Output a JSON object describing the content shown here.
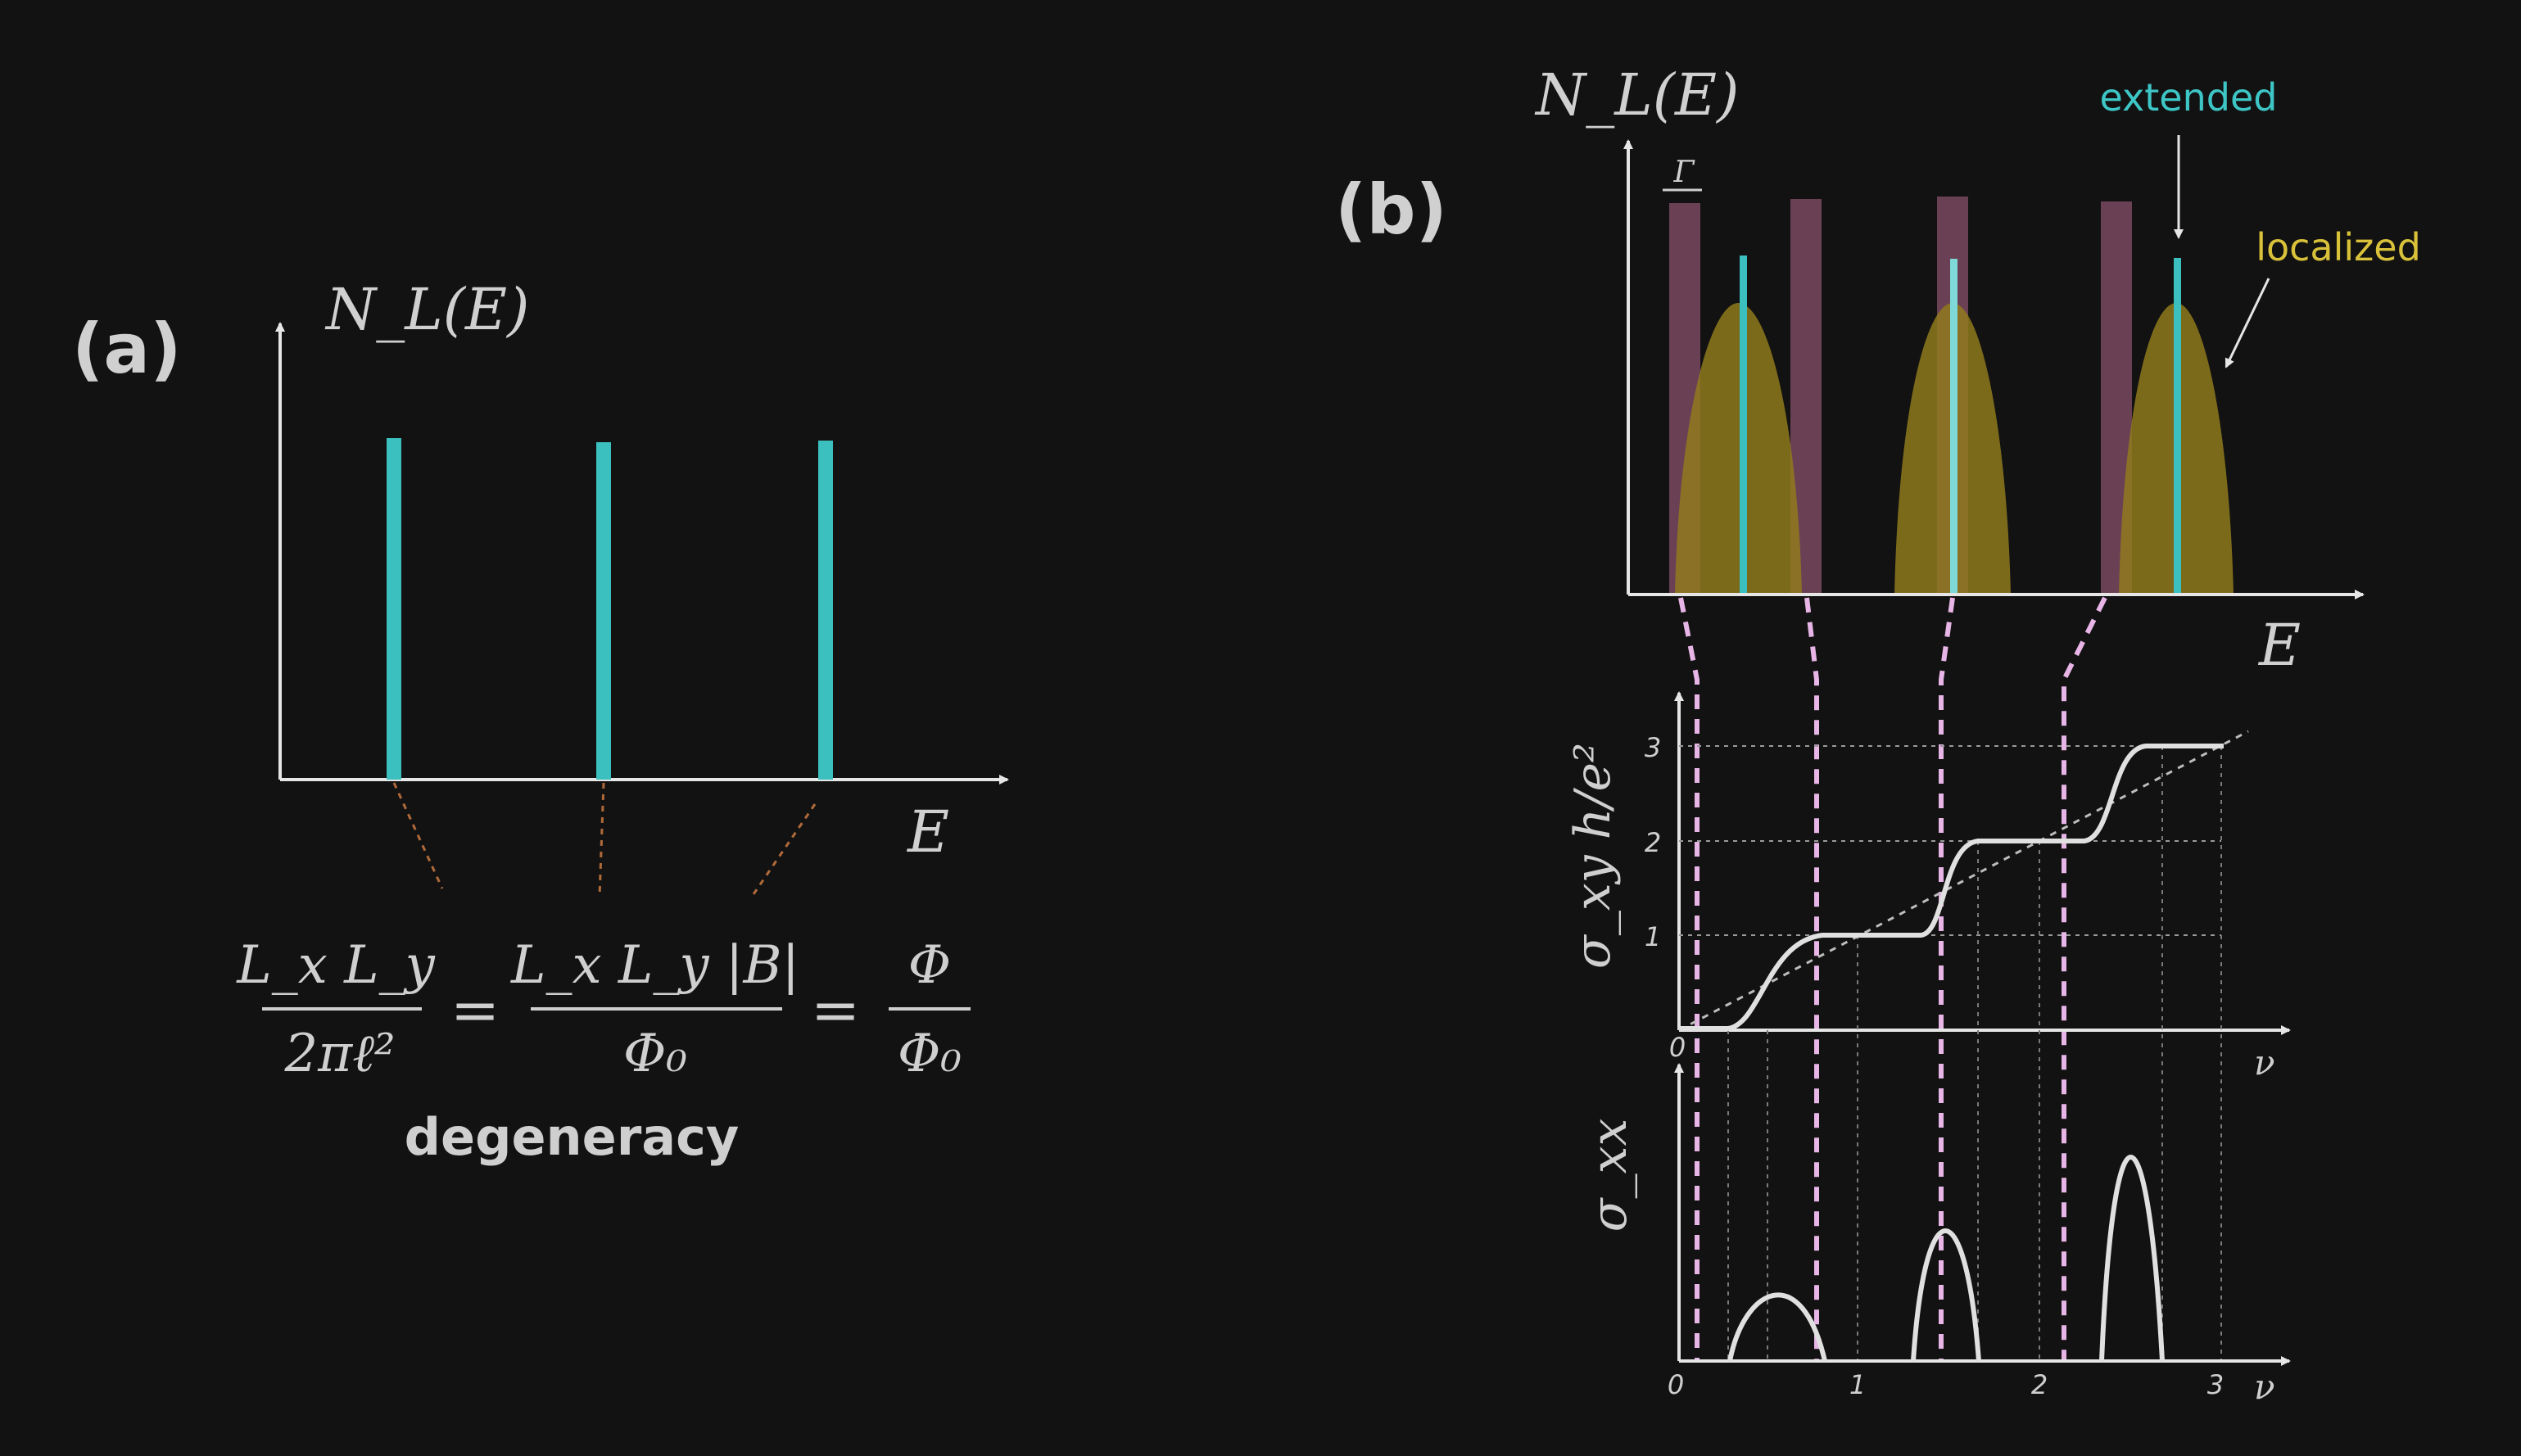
{
  "panel_a": {
    "label": "(a)",
    "y_label": "N_L(E)",
    "x_label": "E",
    "formula": {
      "lhs_num": "L_x L_y",
      "lhs_den": "2πℓ²",
      "mid_num": "L_x L_y |B|",
      "mid_den": "Φ₀",
      "rhs_num": "Φ",
      "rhs_den": "Φ₀",
      "eq": "="
    },
    "caption": "degeneracy"
  },
  "panel_b": {
    "label": "(b)",
    "y_label": "N_L(E)",
    "x_label": "E",
    "gamma_label": "Γ",
    "extended_label": "extended",
    "localized_label": "localized",
    "sigma_xy_label": "σ_xy h/e²",
    "sigma_xx_label": "σ_xx",
    "nu_label": "ν",
    "sigma_xy_ticks": [
      "1",
      "2",
      "3"
    ],
    "nu_ticks": [
      "0",
      "1",
      "2",
      "3"
    ],
    "origin_label": "0"
  },
  "colors": {
    "background": "#121212",
    "axis": "#e6e6e6",
    "extended": "#3bbfbf",
    "localized": "#8f7a1d",
    "band": "#7a4a60",
    "dashed_pink": "#e7b5e6",
    "label_extended": "#3ec6c6",
    "label_localized": "#d9c23a",
    "text": "#d0d0d0"
  }
}
